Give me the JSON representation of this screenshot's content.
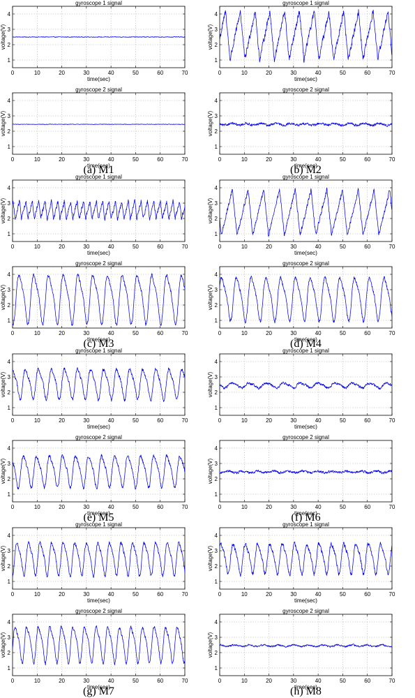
{
  "chart_data": [
    {
      "type": "line",
      "panel": "(a) M1",
      "title": "gyroscope 1 signal",
      "xlabel": "time(sec)",
      "ylabel": "voltage(V)",
      "xlim": [
        0,
        70
      ],
      "ylim": [
        0.5,
        4.5
      ],
      "xticks": [
        0,
        10,
        20,
        30,
        40,
        50,
        60,
        70
      ],
      "yticks": [
        1,
        2,
        3,
        4
      ],
      "grid": true,
      "signal": {
        "baseline": 2.5,
        "amplitude": 0.0,
        "period": 6.0,
        "noise": 0.02,
        "shape": "flat"
      }
    },
    {
      "type": "line",
      "panel": "(a) M1",
      "title": "gyroscope 2 signal",
      "xlabel": "time(sec)",
      "ylabel": "voltage(V)",
      "xlim": [
        0,
        70
      ],
      "ylim": [
        0.5,
        4.5
      ],
      "xticks": [
        0,
        10,
        20,
        30,
        40,
        50,
        60,
        70
      ],
      "yticks": [
        1,
        2,
        3,
        4
      ],
      "grid": true,
      "signal": {
        "baseline": 2.45,
        "amplitude": 0.0,
        "period": 6.0,
        "noise": 0.015,
        "shape": "flat"
      }
    },
    {
      "type": "line",
      "panel": "(b) M2",
      "title": "gyroscope 1 signal",
      "xlabel": "time(sec)",
      "ylabel": "voltage(V)",
      "xlim": [
        0,
        70
      ],
      "ylim": [
        0.5,
        4.5
      ],
      "xticks": [
        0,
        10,
        20,
        30,
        40,
        50,
        60,
        70
      ],
      "yticks": [
        1,
        2,
        3,
        4
      ],
      "grid": true,
      "signal": {
        "baseline": 2.6,
        "amplitude": 1.6,
        "period": 6.0,
        "noise": 0.18,
        "shape": "saw"
      }
    },
    {
      "type": "line",
      "panel": "(b) M2",
      "title": "gyroscope 2 signal",
      "xlabel": "time(sec)",
      "ylabel": "voltage(V)",
      "xlim": [
        0,
        70
      ],
      "ylim": [
        0.5,
        4.5
      ],
      "xticks": [
        0,
        10,
        20,
        30,
        40,
        50,
        60,
        70
      ],
      "yticks": [
        1,
        2,
        3,
        4
      ],
      "grid": true,
      "signal": {
        "baseline": 2.45,
        "amplitude": 0.06,
        "period": 6.0,
        "noise": 0.07,
        "shape": "flat"
      }
    },
    {
      "type": "line",
      "panel": "(c) M3",
      "title": "gyroscope 1 signal",
      "xlabel": "time(sec)",
      "ylabel": "voltage(V)",
      "xlim": [
        0,
        70
      ],
      "ylim": [
        0.5,
        4.5
      ],
      "xticks": [
        0,
        10,
        20,
        30,
        40,
        50,
        60,
        70
      ],
      "yticks": [
        1,
        2,
        3,
        4
      ],
      "grid": true,
      "signal": {
        "baseline": 2.55,
        "amplitude": 0.6,
        "period": 2.6,
        "noise": 0.12,
        "shape": "saw"
      }
    },
    {
      "type": "line",
      "panel": "(c) M3",
      "title": "gyroscope 2 signal",
      "xlabel": "time(sec)",
      "ylabel": "voltage(V)",
      "xlim": [
        0,
        70
      ],
      "ylim": [
        0.5,
        4.5
      ],
      "xticks": [
        0,
        10,
        20,
        30,
        40,
        50,
        60,
        70
      ],
      "yticks": [
        1,
        2,
        3,
        4
      ],
      "grid": true,
      "signal": {
        "baseline": 2.5,
        "amplitude": 1.7,
        "period": 6.0,
        "noise": 0.1,
        "shape": "wave"
      }
    },
    {
      "type": "line",
      "panel": "(d) M4",
      "title": "gyroscope 1 signal",
      "xlabel": "time(sec)",
      "ylabel": "voltage(V)",
      "xlim": [
        0,
        70
      ],
      "ylim": [
        0.5,
        4.5
      ],
      "xticks": [
        0,
        10,
        20,
        30,
        40,
        50,
        60,
        70
      ],
      "yticks": [
        1,
        2,
        3,
        4
      ],
      "grid": true,
      "signal": {
        "baseline": 2.4,
        "amplitude": 1.5,
        "period": 6.4,
        "noise": 0.12,
        "shape": "saw"
      }
    },
    {
      "type": "line",
      "panel": "(d) M4",
      "title": "gyroscope 2 signal",
      "xlabel": "time(sec)",
      "ylabel": "voltage(V)",
      "xlim": [
        0,
        70
      ],
      "ylim": [
        0.5,
        4.5
      ],
      "xticks": [
        0,
        10,
        20,
        30,
        40,
        50,
        60,
        70
      ],
      "yticks": [
        1,
        2,
        3,
        4
      ],
      "grid": true,
      "signal": {
        "baseline": 2.5,
        "amplitude": 1.5,
        "period": 6.0,
        "noise": 0.1,
        "shape": "wave"
      }
    },
    {
      "type": "line",
      "panel": "(e) M5",
      "title": "gyroscope 1 signal",
      "xlabel": "time(sec)",
      "ylabel": "voltage(V)",
      "xlim": [
        0,
        70
      ],
      "ylim": [
        0.5,
        4.5
      ],
      "xticks": [
        0,
        10,
        20,
        30,
        40,
        50,
        60,
        70
      ],
      "yticks": [
        1,
        2,
        3,
        4
      ],
      "grid": true,
      "signal": {
        "baseline": 2.6,
        "amplitude": 1.05,
        "period": 5.3,
        "noise": 0.1,
        "shape": "wave"
      }
    },
    {
      "type": "line",
      "panel": "(e) M5",
      "title": "gyroscope 2 signal",
      "xlabel": "time(sec)",
      "ylabel": "voltage(V)",
      "xlim": [
        0,
        70
      ],
      "ylim": [
        0.5,
        4.5
      ],
      "xticks": [
        0,
        10,
        20,
        30,
        40,
        50,
        60,
        70
      ],
      "yticks": [
        1,
        2,
        3,
        4
      ],
      "grid": true,
      "signal": {
        "baseline": 2.55,
        "amplitude": 1.1,
        "period": 5.3,
        "noise": 0.1,
        "shape": "wave"
      }
    },
    {
      "type": "line",
      "panel": "(f) M6",
      "title": "gyroscope 1 signal",
      "xlabel": "time(sec)",
      "ylabel": "voltage(V)",
      "xlim": [
        0,
        70
      ],
      "ylim": [
        0.5,
        4.5
      ],
      "xticks": [
        0,
        10,
        20,
        30,
        40,
        50,
        60,
        70
      ],
      "yticks": [
        1,
        2,
        3,
        4
      ],
      "grid": true,
      "signal": {
        "baseline": 2.45,
        "amplitude": 0.17,
        "period": 7.0,
        "noise": 0.07,
        "shape": "wave"
      }
    },
    {
      "type": "line",
      "panel": "(f) M6",
      "title": "gyroscope 2 signal",
      "xlabel": "time(sec)",
      "ylabel": "voltage(V)",
      "xlim": [
        0,
        70
      ],
      "ylim": [
        0.5,
        4.5
      ],
      "xticks": [
        0,
        10,
        20,
        30,
        40,
        50,
        60,
        70
      ],
      "yticks": [
        1,
        2,
        3,
        4
      ],
      "grid": true,
      "signal": {
        "baseline": 2.45,
        "amplitude": 0.05,
        "period": 6.0,
        "noise": 0.07,
        "shape": "flat"
      }
    },
    {
      "type": "line",
      "panel": "(g) M7",
      "title": "gyroscope 1 signal",
      "xlabel": "time(sec)",
      "ylabel": "voltage(V)",
      "xlim": [
        0,
        70
      ],
      "ylim": [
        0.5,
        4.5
      ],
      "xticks": [
        0,
        10,
        20,
        30,
        40,
        50,
        60,
        70
      ],
      "yticks": [
        1,
        2,
        3,
        4
      ],
      "grid": true,
      "signal": {
        "baseline": 2.55,
        "amplitude": 1.15,
        "period": 4.7,
        "noise": 0.1,
        "shape": "wave"
      }
    },
    {
      "type": "line",
      "panel": "(g) M7",
      "title": "gyroscope 2 signal",
      "xlabel": "time(sec)",
      "ylabel": "voltage(V)",
      "xlim": [
        0,
        70
      ],
      "ylim": [
        0.5,
        4.5
      ],
      "xticks": [
        0,
        10,
        20,
        30,
        40,
        50,
        60,
        70
      ],
      "yticks": [
        1,
        2,
        3,
        4
      ],
      "grid": true,
      "signal": {
        "baseline": 2.6,
        "amplitude": 1.25,
        "period": 4.7,
        "noise": 0.1,
        "shape": "wave"
      }
    },
    {
      "type": "line",
      "panel": "(h) M8",
      "title": "gyroscope 1 signal",
      "xlabel": "time(sec)",
      "ylabel": "voltage(V)",
      "xlim": [
        0,
        70
      ],
      "ylim": [
        0.5,
        4.5
      ],
      "xticks": [
        0,
        10,
        20,
        30,
        40,
        50,
        60,
        70
      ],
      "yticks": [
        1,
        2,
        3,
        4
      ],
      "grid": true,
      "signal": {
        "baseline": 2.55,
        "amplitude": 1.05,
        "period": 5.0,
        "noise": 0.12,
        "shape": "wave"
      }
    },
    {
      "type": "line",
      "panel": "(h) M8",
      "title": "gyroscope 2 signal",
      "xlabel": "time(sec)",
      "ylabel": "voltage(V)",
      "xlim": [
        0,
        70
      ],
      "ylim": [
        0.5,
        4.5
      ],
      "xticks": [
        0,
        10,
        20,
        30,
        40,
        50,
        60,
        70
      ],
      "yticks": [
        1,
        2,
        3,
        4
      ],
      "grid": true,
      "signal": {
        "baseline": 2.45,
        "amplitude": 0.05,
        "period": 6.0,
        "noise": 0.05,
        "shape": "flat"
      }
    }
  ],
  "captions": [
    "(a) M1",
    "(b) M2",
    "(c) M3",
    "(d) M4",
    "(e) M5",
    "(f) M6",
    "(g) M7",
    "(h) M8"
  ],
  "colors": {
    "trace": "#0000ee",
    "grid": "#9a9a9a",
    "frame": "#000000"
  }
}
